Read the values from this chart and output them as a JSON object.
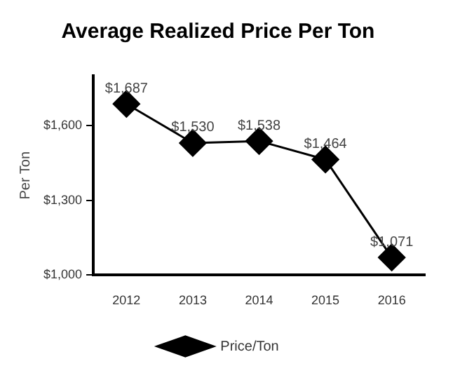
{
  "chart_data": {
    "type": "line",
    "title": "Average Realized Price Per Ton",
    "ylabel": "Per Ton",
    "categories": [
      "2012",
      "2013",
      "2014",
      "2015",
      "2016"
    ],
    "series": [
      {
        "name": "Price/Ton",
        "color": "#000000",
        "values": [
          1687,
          1530,
          1538,
          1464,
          1071
        ],
        "value_labels": [
          "$1,687",
          "$1,530",
          "$1,538",
          "$1,464",
          "$1,071"
        ]
      }
    ],
    "ylim": [
      1000,
      1800
    ],
    "yticks": [
      {
        "value": 1000,
        "label": "$1,000"
      },
      {
        "value": 1300,
        "label": "$1,300"
      },
      {
        "value": 1600,
        "label": "$1,600"
      }
    ],
    "grid": false,
    "legend": "bottom",
    "marker": "diamond",
    "line_style": "solid"
  }
}
